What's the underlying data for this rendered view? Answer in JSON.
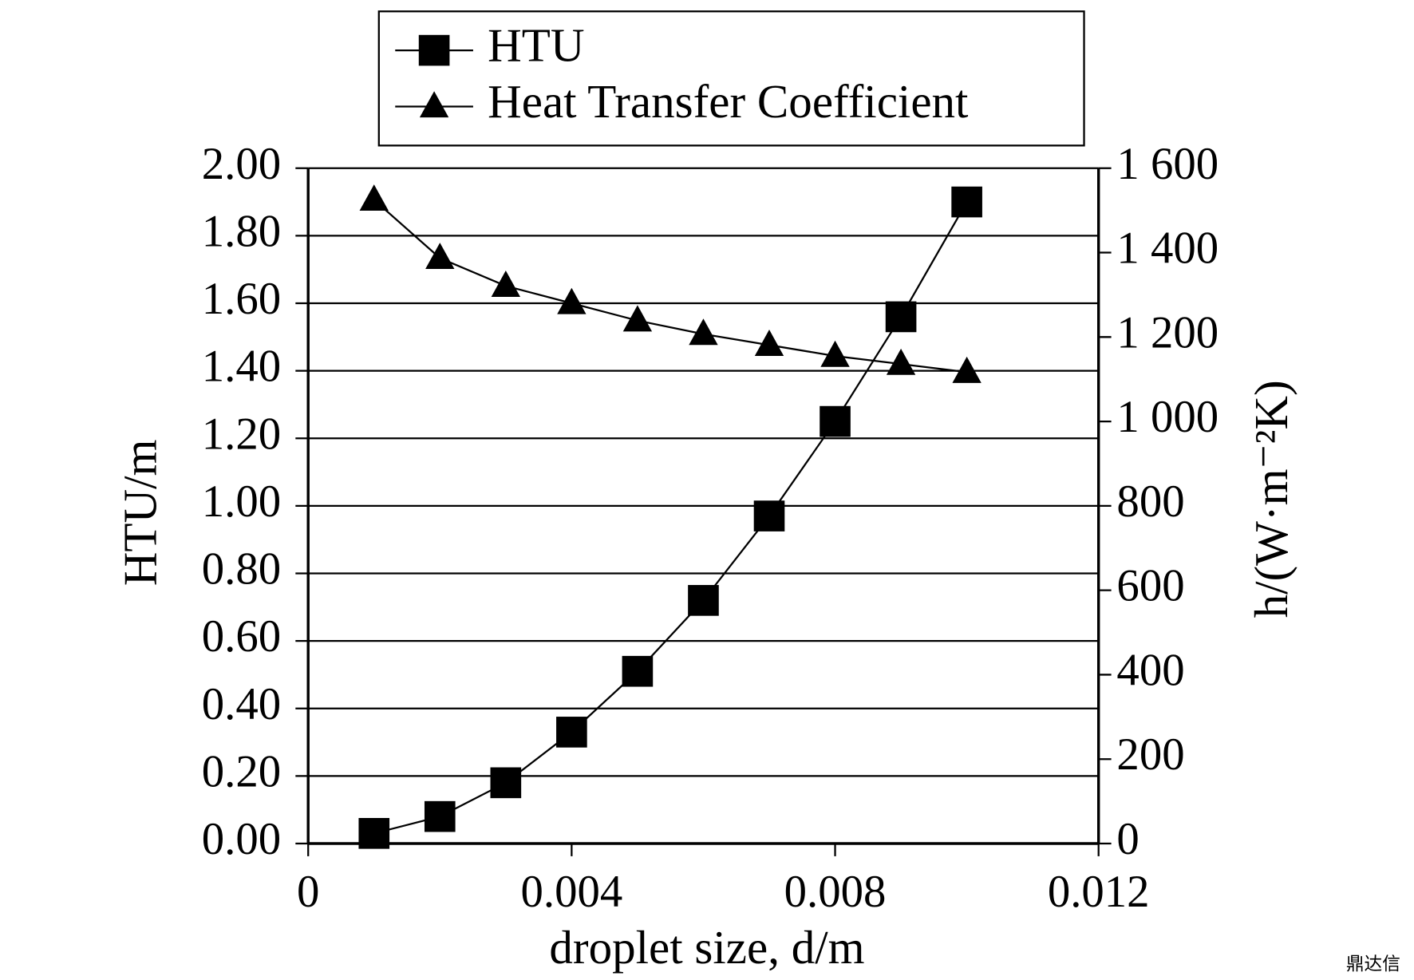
{
  "chart_data": {
    "type": "line",
    "x_label": "droplet size, d/m",
    "y_label": "HTU/m",
    "y2_label": "h/(W·m⁻²K)",
    "x": [
      0.001,
      0.002,
      0.003,
      0.004,
      0.005,
      0.006,
      0.007,
      0.008,
      0.009,
      0.01
    ],
    "series": [
      {
        "name": "HTU",
        "color": "#000000",
        "marker": "square",
        "axis": "y",
        "values": [
          0.03,
          0.08,
          0.18,
          0.33,
          0.51,
          0.72,
          0.97,
          1.25,
          1.56,
          1.9
        ]
      },
      {
        "name": "Heat Transfer Coefficient",
        "color": "#000000",
        "marker": "triangle",
        "axis": "y2",
        "values": [
          1525,
          1387,
          1321,
          1280,
          1239,
          1207,
          1181,
          1155,
          1136,
          1117
        ]
      }
    ],
    "xlim": [
      0,
      0.012
    ],
    "xticks": [
      0,
      0.004,
      0.008,
      0.012
    ],
    "ylim": [
      0,
      2
    ],
    "yticks": [
      {
        "value": 0,
        "label": "0.00"
      },
      {
        "value": 0.2,
        "label": "0.20"
      },
      {
        "value": 0.4,
        "label": "0.40"
      },
      {
        "value": 0.6,
        "label": "0.60"
      },
      {
        "value": 0.8,
        "label": "0.80"
      },
      {
        "value": 1,
        "label": "1.00"
      },
      {
        "value": 1.2,
        "label": "1.20"
      },
      {
        "value": 1.4,
        "label": "1.40"
      },
      {
        "value": 1.6,
        "label": "1.60"
      },
      {
        "value": 1.8,
        "label": "1.80"
      },
      {
        "value": 2,
        "label": "2.00"
      }
    ],
    "y2lim": [
      0,
      1600
    ],
    "y2ticks": [
      0,
      200,
      400,
      600,
      800,
      {
        "value": 1000,
        "label": "1 000"
      },
      {
        "value": 1200,
        "label": "1 200"
      },
      {
        "value": 1400,
        "label": "1 400"
      },
      {
        "value": 1600,
        "label": "1 600"
      }
    ],
    "grid": true,
    "watermark": "鼎达信"
  }
}
